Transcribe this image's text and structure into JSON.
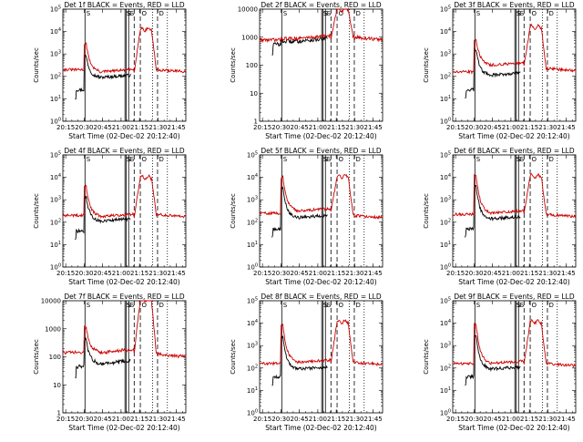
{
  "chart_data": {
    "type": "line",
    "figure": "RHESSI detector count rates, 3x3 panel grid",
    "colors": {
      "black_series": "#000000",
      "red_series": "#cc0000",
      "axes": "#000000"
    },
    "shared": {
      "xlabel": "Start Time (02-Dec-02 20:12:40)",
      "ylabel": "Counts/sec",
      "x_ticks": [
        "20:15",
        "20:30",
        "20:45",
        "21:00",
        "21:15",
        "21:30",
        "21:45"
      ],
      "x_tick_minutes": [
        2.33,
        17.33,
        32.33,
        47.33,
        62.33,
        77.33,
        92.33
      ],
      "xlim_minutes": [
        0,
        100
      ],
      "markers": [
        {
          "label": "S",
          "minute": 18,
          "style": "solid"
        },
        {
          "label": "S",
          "minute": 50.5,
          "style": "solid"
        },
        {
          "label": "S",
          "minute": 51.5,
          "style": "solid"
        },
        {
          "label": "S",
          "minute": 53.5,
          "style": "solid"
        },
        {
          "label": "",
          "minute": 58,
          "style": "dashed"
        },
        {
          "label": "O",
          "minute": 63,
          "style": "dashed"
        },
        {
          "label": "",
          "minute": 73,
          "style": "dotted"
        },
        {
          "label": "D",
          "minute": 77,
          "style": "dashed"
        },
        {
          "label": "",
          "minute": 85,
          "style": "dotted"
        }
      ]
    },
    "panels": [
      {
        "title": "Det 1f BLACK = Events, RED = LLD",
        "y_tick_labels": [
          "10^0",
          "10^1",
          "10^2",
          "10^3",
          "10^4",
          "10^5"
        ],
        "ylim_log10": [
          0,
          5
        ],
        "red_levels": [
          2.3,
          3.45,
          2.2,
          4.1,
          2.3
        ],
        "black_levels": [
          1.4,
          2.9,
          1.95,
          1.95,
          1.95
        ]
      },
      {
        "title": "Det 2f BLACK = Events, RED = LLD",
        "y_tick_labels": [
          "1",
          "10",
          "100",
          "1000",
          "10000"
        ],
        "ylim_log10": [
          0,
          4
        ],
        "red_levels": [
          2.9,
          2.95,
          2.95,
          4.0,
          3.0
        ],
        "black_levels": [
          2.75,
          2.85,
          2.85,
          2.85,
          2.85
        ]
      },
      {
        "title": "Det 3f BLACK = Events, RED = LLD",
        "y_tick_labels": [
          "10^0",
          "10^1",
          "10^2",
          "10^3",
          "10^4",
          "10^5"
        ],
        "ylim_log10": [
          0,
          5
        ],
        "red_levels": [
          2.2,
          3.65,
          2.5,
          4.2,
          2.35
        ],
        "black_levels": [
          1.4,
          3.2,
          2.05,
          2.05,
          2.05
        ]
      },
      {
        "title": "Det 4f BLACK = Events, RED = LLD",
        "y_tick_labels": [
          "10^0",
          "10^1",
          "10^2",
          "10^3",
          "10^4",
          "10^5"
        ],
        "ylim_log10": [
          0,
          5
        ],
        "red_levels": [
          2.3,
          3.6,
          2.25,
          4.0,
          2.35
        ],
        "black_levels": [
          1.6,
          3.1,
          2.05,
          2.05,
          2.05
        ]
      },
      {
        "title": "Det 5f BLACK = Events, RED = LLD",
        "y_tick_labels": [
          "10^0",
          "10^1",
          "10^2",
          "10^3",
          "10^4",
          "10^5"
        ],
        "ylim_log10": [
          0,
          5
        ],
        "red_levels": [
          2.4,
          4.0,
          2.5,
          4.05,
          2.3
        ],
        "black_levels": [
          1.7,
          3.5,
          2.2,
          2.2,
          2.2
        ]
      },
      {
        "title": "Det 6f BLACK = Events, RED = LLD",
        "y_tick_labels": [
          "10^0",
          "10^1",
          "10^2",
          "10^3",
          "10^4",
          "10^5"
        ],
        "ylim_log10": [
          0,
          5
        ],
        "red_levels": [
          2.35,
          4.1,
          2.4,
          4.05,
          2.35
        ],
        "black_levels": [
          1.7,
          3.6,
          2.15,
          2.15,
          2.15
        ]
      },
      {
        "title": "Det 7f BLACK = Events, RED = LLD",
        "y_tick_labels": [
          "1",
          "10",
          "100",
          "1000",
          "10000"
        ],
        "ylim_log10": [
          0,
          4
        ],
        "red_levels": [
          2.15,
          3.05,
          2.15,
          4.05,
          2.1
        ],
        "black_levels": [
          1.65,
          2.6,
          1.75,
          1.75,
          1.75
        ]
      },
      {
        "title": "Det 8f BLACK = Events, RED = LLD",
        "y_tick_labels": [
          "10^0",
          "10^1",
          "10^2",
          "10^3",
          "10^4",
          "10^5"
        ],
        "ylim_log10": [
          0,
          5
        ],
        "red_levels": [
          2.2,
          3.9,
          2.25,
          4.05,
          2.25
        ],
        "black_levels": [
          1.6,
          3.4,
          1.95,
          1.95,
          1.95
        ]
      },
      {
        "title": "Det 9f BLACK = Events, RED = LLD",
        "y_tick_labels": [
          "10^0",
          "10^1",
          "10^2",
          "10^3",
          "10^4",
          "10^5"
        ],
        "ylim_log10": [
          0,
          5
        ],
        "red_levels": [
          2.2,
          3.95,
          2.2,
          4.05,
          2.2
        ],
        "black_levels": [
          1.6,
          3.45,
          1.95,
          1.95,
          1.95
        ]
      }
    ]
  }
}
